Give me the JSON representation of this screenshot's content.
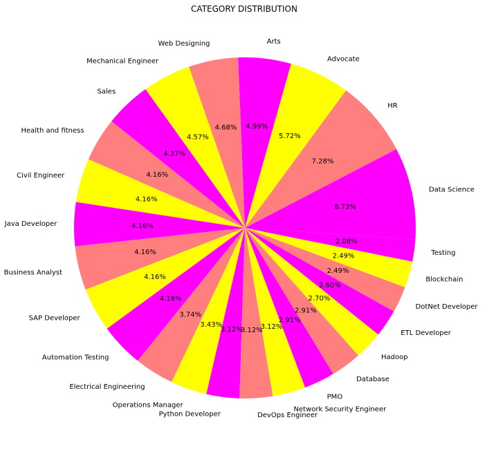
{
  "chart_data": {
    "type": "pie",
    "title": "CATEGORY DISTRIBUTION",
    "colors": [
      "#ff00ff",
      "#ff7f7f",
      "#ffff00"
    ],
    "slices": [
      {
        "label": "Data Science",
        "value": 8.73,
        "pct": "8.73%"
      },
      {
        "label": "HR",
        "value": 7.28,
        "pct": "7.28%"
      },
      {
        "label": "Advocate",
        "value": 5.72,
        "pct": "5.72%"
      },
      {
        "label": "Arts",
        "value": 4.99,
        "pct": "4.99%"
      },
      {
        "label": "Web Designing",
        "value": 4.68,
        "pct": "4.68%"
      },
      {
        "label": "Mechanical Engineer",
        "value": 4.57,
        "pct": "4.57%"
      },
      {
        "label": "Sales",
        "value": 4.37,
        "pct": "4.37%"
      },
      {
        "label": "Health and fitness",
        "value": 4.16,
        "pct": "4.16%"
      },
      {
        "label": "Civil Engineer",
        "value": 4.16,
        "pct": "4.16%"
      },
      {
        "label": "Java Developer",
        "value": 4.16,
        "pct": "4.16%"
      },
      {
        "label": "Business Analyst",
        "value": 4.16,
        "pct": "4.16%"
      },
      {
        "label": "SAP Developer",
        "value": 4.16,
        "pct": "4.16%"
      },
      {
        "label": "Automation Testing",
        "value": 4.16,
        "pct": "4.16%"
      },
      {
        "label": "Electrical Engineering",
        "value": 3.74,
        "pct": "3.74%"
      },
      {
        "label": "Operations Manager",
        "value": 3.43,
        "pct": "3.43%"
      },
      {
        "label": "Python Developer",
        "value": 3.12,
        "pct": "3.12%"
      },
      {
        "label": "DevOps Engineer",
        "value": 3.12,
        "pct": "3.12%"
      },
      {
        "label": "Network Security Engineer",
        "value": 3.12,
        "pct": "3.12%"
      },
      {
        "label": "PMO",
        "value": 2.91,
        "pct": "2.91%"
      },
      {
        "label": "Database",
        "value": 2.91,
        "pct": "2.91%"
      },
      {
        "label": "Hadoop",
        "value": 2.7,
        "pct": "2.70%"
      },
      {
        "label": "ETL Developer",
        "value": 2.6,
        "pct": "2.60%"
      },
      {
        "label": "DotNet Developer",
        "value": 2.49,
        "pct": "2.49%"
      },
      {
        "label": "Blockchain",
        "value": 2.49,
        "pct": "2.49%"
      },
      {
        "label": "Testing",
        "value": 2.08,
        "pct": "2.08%"
      }
    ]
  }
}
